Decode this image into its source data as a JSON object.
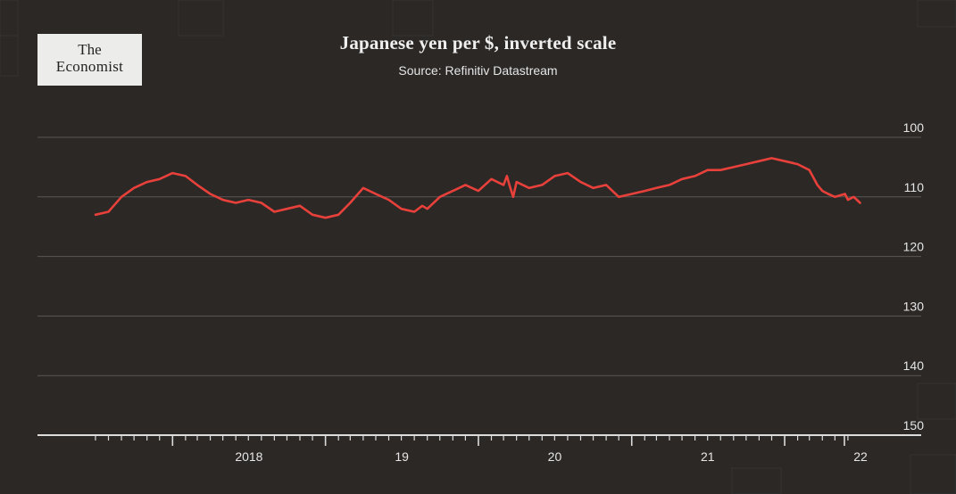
{
  "logo": {
    "line1": "The",
    "line2": "Economist"
  },
  "colors": {
    "background": "#2b2826",
    "line": "#e8403a",
    "grid": "#5a5755",
    "text": "#e6e6e6"
  },
  "chart_data": {
    "type": "line",
    "title": "Japanese yen per $, inverted scale",
    "subtitle": "Source: Refinitiv Datastream",
    "x_tick_labels": [
      "2018",
      "19",
      "20",
      "21",
      "22"
    ],
    "y_ticks": [
      100,
      110,
      120,
      130,
      140,
      150
    ],
    "ylim": [
      100,
      151
    ],
    "y_inverted": true,
    "xlim": [
      "2017-01-01",
      "2022-06-30"
    ],
    "grid": true,
    "series": [
      {
        "x": [
          "2017-07-01",
          "2017-08-01",
          "2017-09-01",
          "2017-10-01",
          "2017-11-01",
          "2017-12-01",
          "2018-01-01",
          "2018-02-01",
          "2018-03-01",
          "2018-04-01",
          "2018-05-01",
          "2018-06-01",
          "2018-07-01",
          "2018-08-01",
          "2018-09-01",
          "2018-10-01",
          "2018-11-01",
          "2018-12-01",
          "2019-01-01",
          "2019-02-01",
          "2019-03-01",
          "2019-04-01",
          "2019-05-01",
          "2019-06-01",
          "2019-07-01",
          "2019-08-01",
          "2019-08-20",
          "2019-09-01",
          "2019-10-01",
          "2019-11-01",
          "2019-12-01",
          "2020-01-01",
          "2020-02-01",
          "2020-03-01",
          "2020-03-09",
          "2020-03-15",
          "2020-03-24",
          "2020-04-01",
          "2020-05-01",
          "2020-06-01",
          "2020-07-01",
          "2020-08-01",
          "2020-09-01",
          "2020-10-01",
          "2020-11-01",
          "2020-12-01",
          "2021-01-01",
          "2021-02-01",
          "2021-03-01",
          "2021-04-01",
          "2021-05-01",
          "2021-06-01",
          "2021-07-01",
          "2021-08-01",
          "2021-09-01",
          "2021-10-01",
          "2021-11-01",
          "2021-12-01",
          "2022-01-01",
          "2022-02-01",
          "2022-03-01",
          "2022-03-20",
          "2022-04-01",
          "2022-04-15",
          "2022-05-01",
          "2022-05-25",
          "2022-06-01",
          "2022-06-15",
          "2022-06-30"
        ],
        "values": [
          113.0,
          112.5,
          110.0,
          108.5,
          107.5,
          107.0,
          106.0,
          106.5,
          108.0,
          109.5,
          110.5,
          111.0,
          110.5,
          111.0,
          112.5,
          112.0,
          111.5,
          113.0,
          113.5,
          113.0,
          111.0,
          108.5,
          109.5,
          110.5,
          112.0,
          112.5,
          111.5,
          112.0,
          110.0,
          109.0,
          108.0,
          109.0,
          107.0,
          108.0,
          106.5,
          108.0,
          110.0,
          107.5,
          108.5,
          108.0,
          106.5,
          106.0,
          107.5,
          108.5,
          108.0,
          110.0,
          109.5,
          109.0,
          108.5,
          108.0,
          107.0,
          106.5,
          105.5,
          105.5,
          105.0,
          104.5,
          104.0,
          103.5,
          104.0,
          104.5,
          105.5,
          108.0,
          109.0,
          109.5,
          110.0,
          109.5,
          110.5,
          110.0,
          111.0
        ]
      }
    ]
  }
}
